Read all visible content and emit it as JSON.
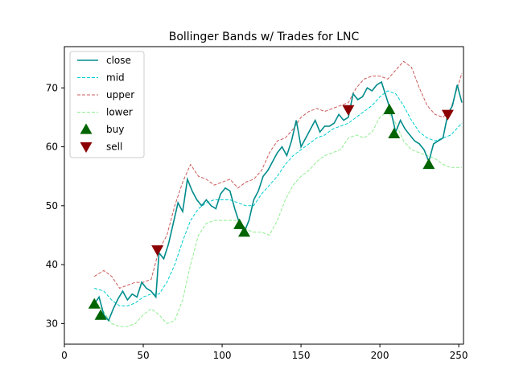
{
  "chart_data": {
    "type": "line",
    "title": "Bollinger Bands w/ Trades for LNC",
    "xlabel": "",
    "ylabel": "",
    "xlim": [
      0,
      253
    ],
    "ylim": [
      26.5,
      77
    ],
    "xticks": [
      0,
      50,
      100,
      150,
      200,
      250
    ],
    "yticks": [
      30,
      40,
      50,
      60,
      70
    ],
    "grid": false,
    "legend_position": "top-left",
    "legend": [
      "close",
      "mid",
      "upper",
      "lower",
      "buy",
      "sell"
    ],
    "series": [
      {
        "name": "close",
        "style": "solid",
        "color": "#008b8b",
        "x": [
          19,
          22,
          25,
          28,
          31,
          34,
          37,
          40,
          43,
          46,
          49,
          52,
          55,
          58,
          60,
          63,
          66,
          69,
          72,
          75,
          78,
          81,
          84,
          87,
          90,
          93,
          96,
          99,
          102,
          105,
          108,
          111,
          114,
          117,
          120,
          123,
          126,
          129,
          132,
          135,
          138,
          141,
          144,
          147,
          150,
          153,
          156,
          159,
          162,
          165,
          168,
          171,
          174,
          177,
          180,
          183,
          186,
          189,
          192,
          195,
          198,
          201,
          204,
          207,
          210,
          213,
          216,
          219,
          222,
          225,
          228,
          231,
          234,
          237,
          240,
          243,
          246,
          249,
          252
        ],
        "values": [
          33.3,
          34.5,
          31.5,
          30.5,
          32.5,
          34.2,
          35.5,
          34.0,
          35.0,
          34.5,
          37.0,
          36.0,
          35.5,
          34.5,
          42.0,
          41.0,
          43.5,
          47.0,
          50.5,
          49.0,
          54.5,
          52.5,
          51.0,
          50.0,
          51.0,
          50.0,
          49.5,
          52.0,
          53.0,
          52.5,
          49.5,
          47.0,
          45.5,
          47.5,
          51.0,
          52.5,
          55.0,
          56.0,
          57.5,
          59.0,
          60.0,
          58.5,
          61.0,
          64.5,
          60.0,
          61.5,
          63.0,
          64.5,
          62.5,
          63.5,
          63.5,
          64.0,
          65.5,
          64.5,
          65.0,
          69.0,
          68.0,
          68.5,
          70.0,
          69.5,
          70.5,
          71.0,
          68.5,
          66.0,
          62.5,
          64.5,
          63.0,
          62.0,
          61.0,
          60.5,
          59.5,
          57.5,
          60.5,
          61.0,
          61.5,
          65.5,
          67.0,
          70.5,
          67.5
        ]
      },
      {
        "name": "mid",
        "style": "dashed",
        "color": "#00ced1",
        "x": [
          19,
          25,
          30,
          35,
          40,
          45,
          50,
          55,
          60,
          65,
          70,
          75,
          80,
          85,
          90,
          95,
          100,
          105,
          110,
          115,
          120,
          125,
          130,
          135,
          140,
          145,
          150,
          155,
          160,
          165,
          170,
          175,
          180,
          185,
          190,
          195,
          200,
          205,
          210,
          215,
          220,
          225,
          230,
          235,
          240,
          245,
          252
        ],
        "values": [
          36.0,
          35.5,
          34.0,
          33.0,
          33.0,
          33.5,
          34.5,
          35.0,
          35.0,
          37.0,
          40.0,
          44.0,
          47.5,
          49.5,
          50.5,
          51.0,
          51.0,
          51.0,
          50.5,
          50.0,
          50.0,
          52.0,
          53.5,
          55.0,
          57.0,
          58.5,
          59.5,
          60.5,
          61.5,
          62.0,
          63.0,
          63.5,
          64.0,
          65.0,
          66.0,
          67.0,
          68.5,
          69.5,
          69.0,
          67.0,
          64.5,
          62.5,
          61.5,
          61.0,
          61.5,
          62.0,
          64.0
        ]
      },
      {
        "name": "upper",
        "style": "dashed",
        "color": "#cd5c5c",
        "x": [
          19,
          25,
          30,
          35,
          40,
          45,
          50,
          55,
          60,
          65,
          70,
          75,
          80,
          85,
          90,
          95,
          100,
          105,
          110,
          115,
          120,
          125,
          130,
          135,
          140,
          145,
          150,
          155,
          160,
          165,
          170,
          175,
          180,
          185,
          190,
          195,
          200,
          205,
          210,
          215,
          220,
          225,
          230,
          235,
          240,
          245,
          252
        ],
        "values": [
          38.0,
          39.0,
          38.0,
          36.0,
          36.5,
          37.0,
          37.0,
          37.5,
          42.5,
          45.0,
          50.0,
          54.0,
          57.0,
          55.0,
          54.5,
          53.5,
          54.0,
          54.5,
          53.0,
          54.0,
          54.5,
          56.0,
          59.0,
          61.0,
          61.5,
          63.0,
          65.0,
          66.0,
          66.5,
          66.0,
          66.5,
          67.0,
          67.5,
          70.0,
          71.5,
          72.0,
          72.0,
          71.5,
          73.0,
          74.5,
          73.5,
          70.0,
          67.0,
          65.5,
          65.0,
          66.5,
          72.5
        ]
      },
      {
        "name": "lower",
        "style": "dashed",
        "color": "#90ee90",
        "x": [
          19,
          25,
          30,
          35,
          40,
          45,
          50,
          55,
          60,
          65,
          70,
          75,
          80,
          85,
          90,
          95,
          100,
          105,
          110,
          115,
          120,
          125,
          130,
          135,
          140,
          145,
          150,
          155,
          160,
          165,
          170,
          175,
          180,
          185,
          190,
          195,
          200,
          205,
          210,
          215,
          220,
          225,
          230,
          235,
          240,
          245,
          252
        ],
        "values": [
          34.0,
          32.0,
          30.0,
          29.5,
          29.5,
          30.0,
          31.5,
          32.5,
          31.5,
          30.0,
          30.5,
          34.0,
          40.0,
          45.0,
          47.0,
          47.5,
          47.5,
          47.5,
          47.5,
          46.0,
          45.5,
          45.5,
          45.0,
          47.5,
          51.0,
          53.5,
          55.0,
          56.0,
          57.5,
          58.5,
          59.0,
          59.5,
          61.5,
          62.0,
          61.5,
          62.5,
          65.0,
          66.0,
          64.0,
          61.0,
          59.5,
          59.0,
          58.5,
          58.0,
          57.0,
          56.5,
          56.5
        ]
      }
    ],
    "markers": [
      {
        "name": "buy",
        "color": "#006400",
        "shape": "triangle-up",
        "points": [
          [
            19,
            33.3
          ],
          [
            23,
            31.4
          ],
          [
            111,
            46.8
          ],
          [
            114,
            45.5
          ],
          [
            206,
            66.3
          ],
          [
            209,
            62.2
          ],
          [
            231,
            57.0
          ]
        ]
      },
      {
        "name": "sell",
        "color": "#8b0000",
        "shape": "triangle-down",
        "points": [
          [
            59,
            42.5
          ],
          [
            180,
            66.3
          ],
          [
            243,
            65.5
          ]
        ]
      }
    ]
  }
}
